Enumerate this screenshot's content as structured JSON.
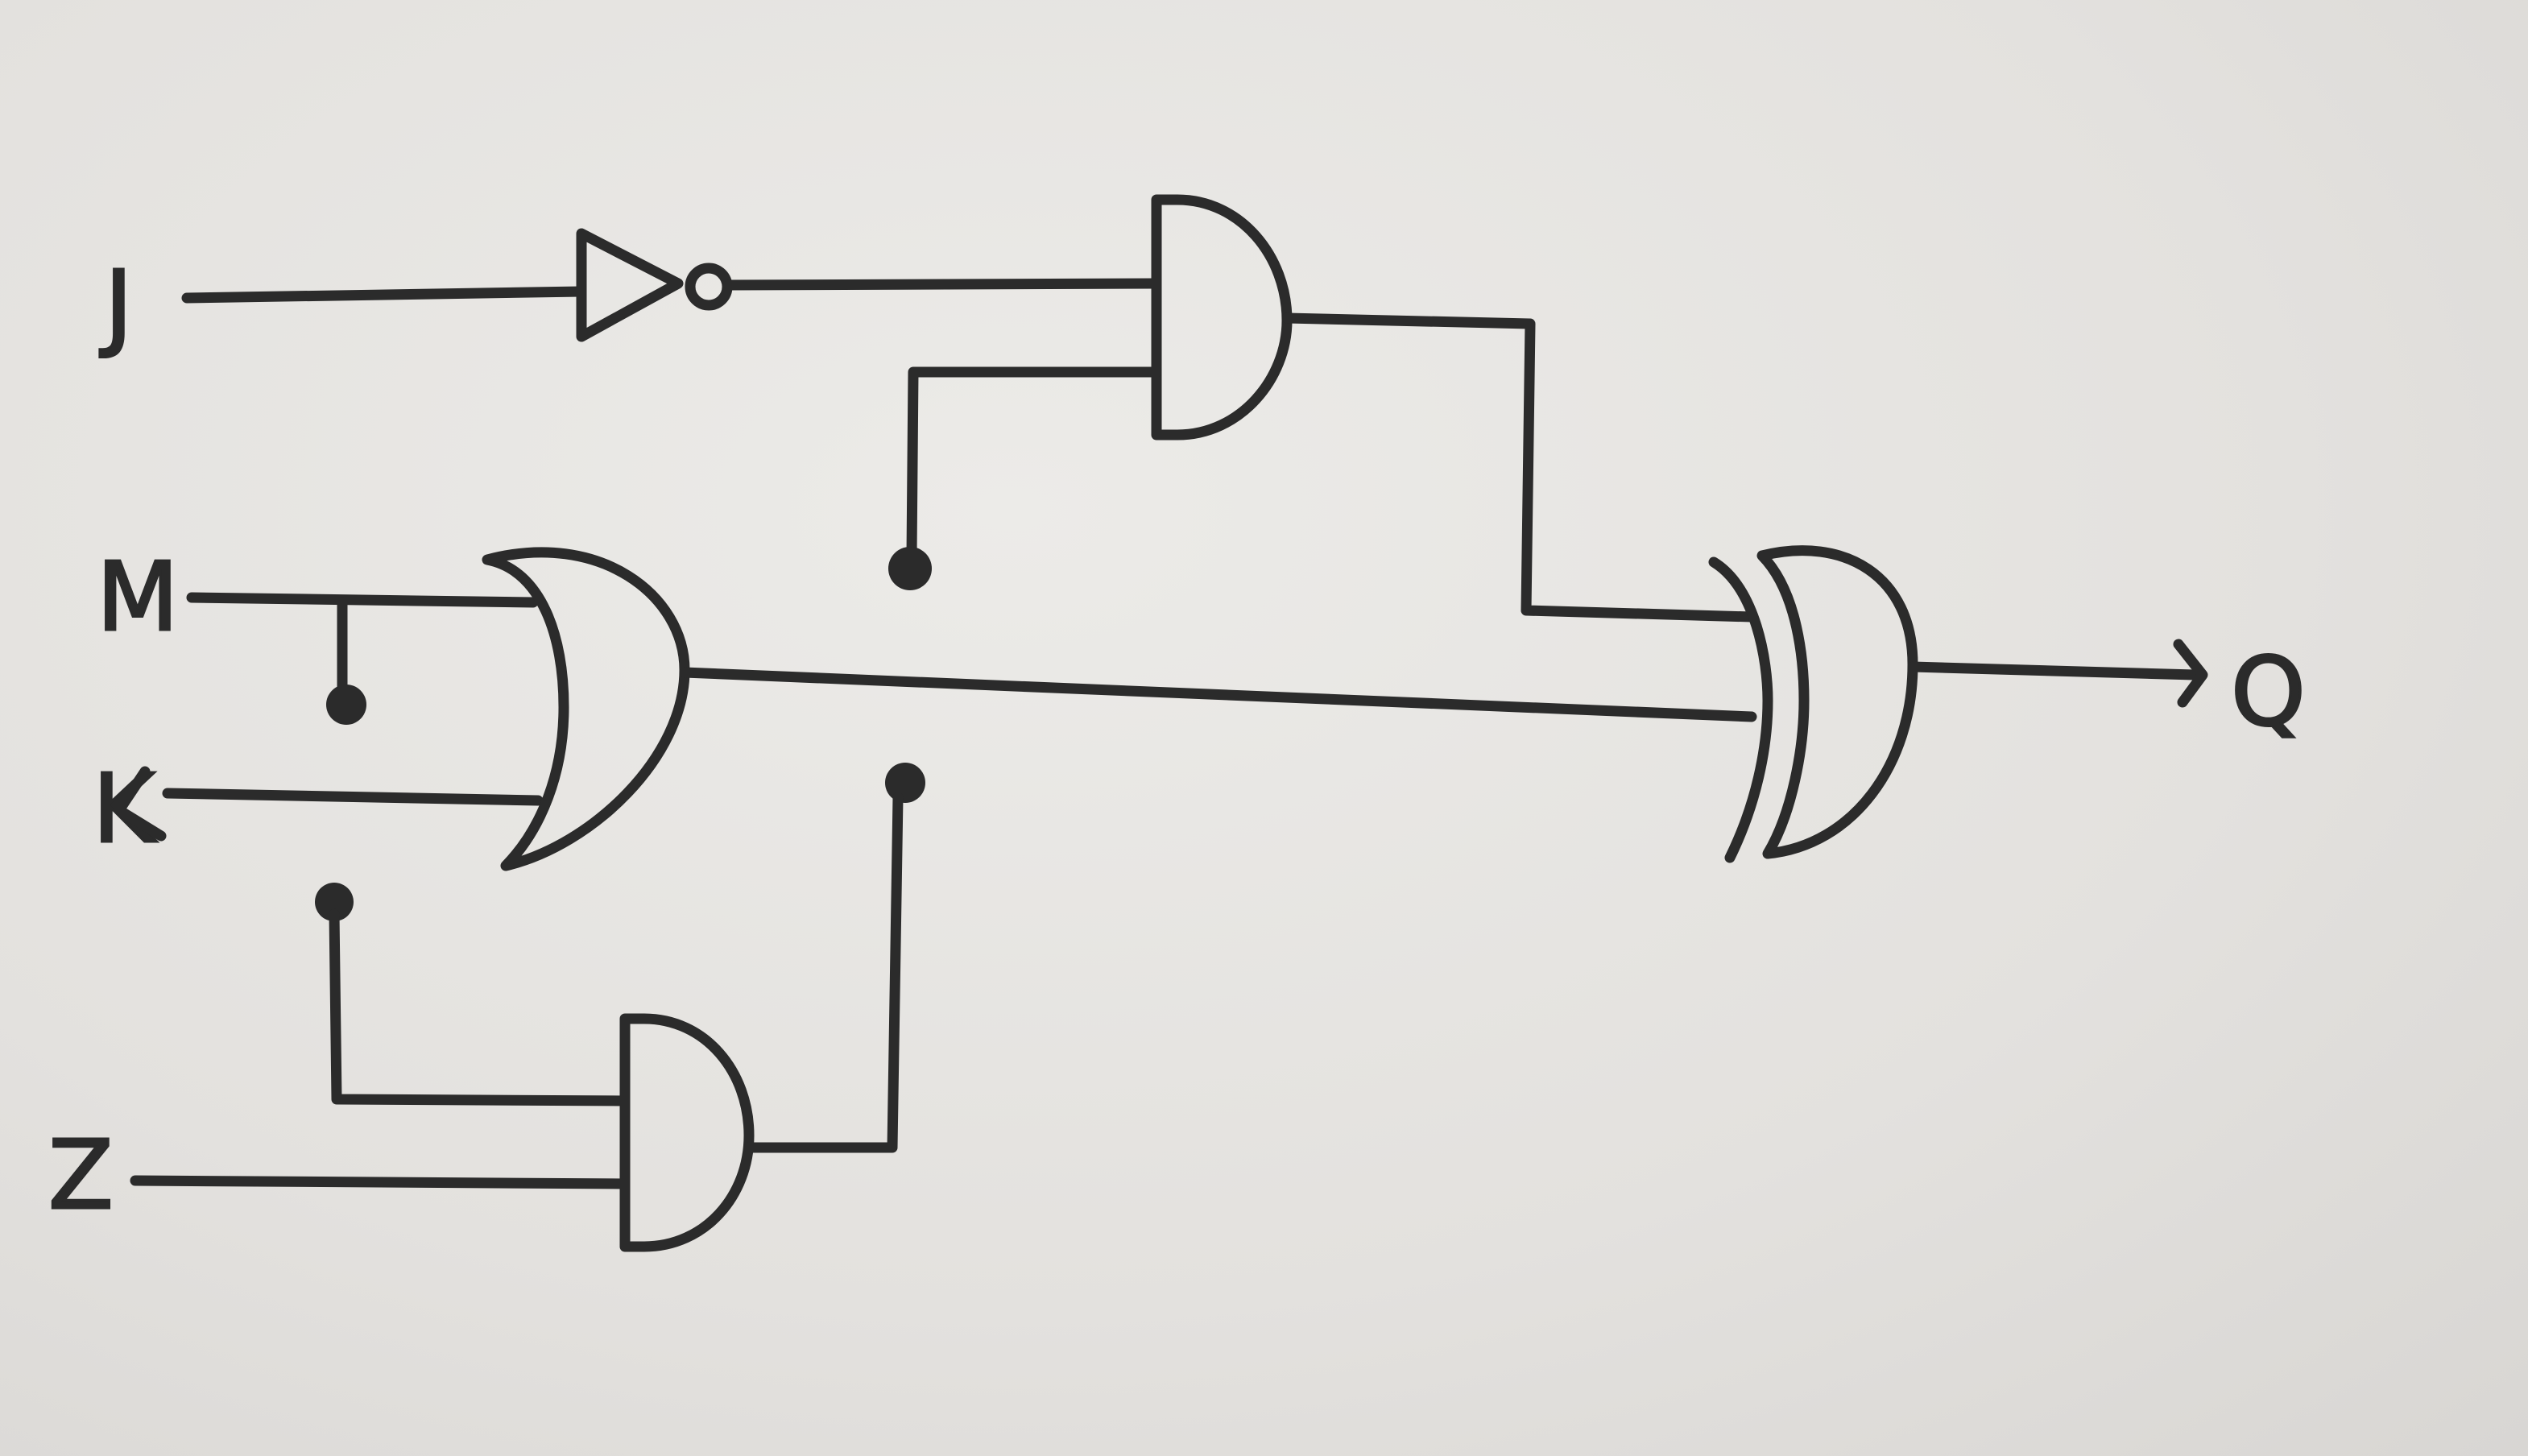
{
  "diagram": {
    "inputs": [
      "J",
      "M",
      "K",
      "Z"
    ],
    "output": "Q",
    "gates": [
      {
        "type": "NOT",
        "input": "J"
      },
      {
        "type": "AND",
        "inputs": [
          "NOT(J)",
          "open-terminal"
        ]
      },
      {
        "type": "OR",
        "inputs": [
          "M",
          "K"
        ]
      },
      {
        "type": "AND",
        "inputs": [
          "open-terminal",
          "Z"
        ]
      },
      {
        "type": "XOR",
        "inputs": [
          "AND",
          "OR"
        ],
        "output": "Q"
      }
    ]
  }
}
